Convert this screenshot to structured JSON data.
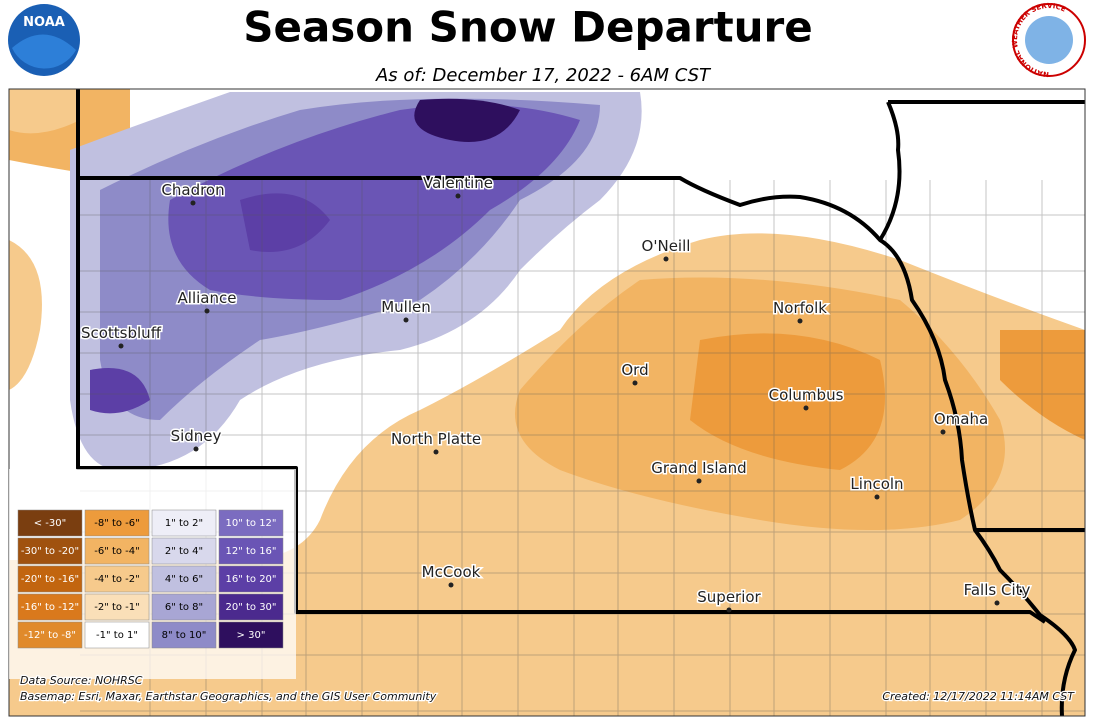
{
  "header": {
    "title": "Season Snow Departure",
    "subtitle": "As of: December 17, 2022 - 6AM CST"
  },
  "logos": {
    "noaa": "NOAA",
    "nws": "NATIONAL WEATHER SERVICE"
  },
  "cities": [
    "Chadron",
    "Valentine",
    "O'Neill",
    "Alliance",
    "Mullen",
    "Norfolk",
    "Scottsbluff",
    "Ord",
    "Columbus",
    "Omaha",
    "Sidney",
    "North Platte",
    "Grand Island",
    "Lincoln",
    "McCook",
    "Superior",
    "Falls City"
  ],
  "legend": [
    {
      "label": "< -30\"",
      "color": "#7a3e10"
    },
    {
      "label": "-30\" to -20\"",
      "color": "#a0520f"
    },
    {
      "label": "-20\" to -16\"",
      "color": "#c2650f"
    },
    {
      "label": "-16\" to -12\"",
      "color": "#d9791c"
    },
    {
      "label": "-12\" to -8\"",
      "color": "#e08a2b"
    },
    {
      "label": "-8\" to -6\"",
      "color": "#ed9b3c"
    },
    {
      "label": "-6\" to -4\"",
      "color": "#f2b463"
    },
    {
      "label": "-4\" to -2\"",
      "color": "#f6ca8c"
    },
    {
      "label": "-2\" to -1\"",
      "color": "#fadfb8"
    },
    {
      "label": "-1\" to 1\"",
      "color": "#ffffff"
    },
    {
      "label": "1\" to 2\"",
      "color": "#eeeef7"
    },
    {
      "label": "2\" to 4\"",
      "color": "#d8d8ec"
    },
    {
      "label": "4\" to 6\"",
      "color": "#c0c0e0"
    },
    {
      "label": "6\" to 8\"",
      "color": "#a8a6d4"
    },
    {
      "label": "8\" to 10\"",
      "color": "#8e8bc8"
    },
    {
      "label": "10\" to 12\"",
      "color": "#7b6cc0"
    },
    {
      "label": "12\" to 16\"",
      "color": "#6a55b5"
    },
    {
      "label": "16\" to 20\"",
      "color": "#5c3fa6"
    },
    {
      "label": "20\" to 30\"",
      "color": "#4b2a8e"
    },
    {
      "label": "> 30\"",
      "color": "#2e0f5e"
    }
  ],
  "footer": {
    "source": "Data Source: NOHRSC",
    "basemap": "Basemap: Esri, Maxar, Earthstar Geographics, and the GIS User Community",
    "created": "Created: 12/17/2022 11:14AM CST"
  }
}
